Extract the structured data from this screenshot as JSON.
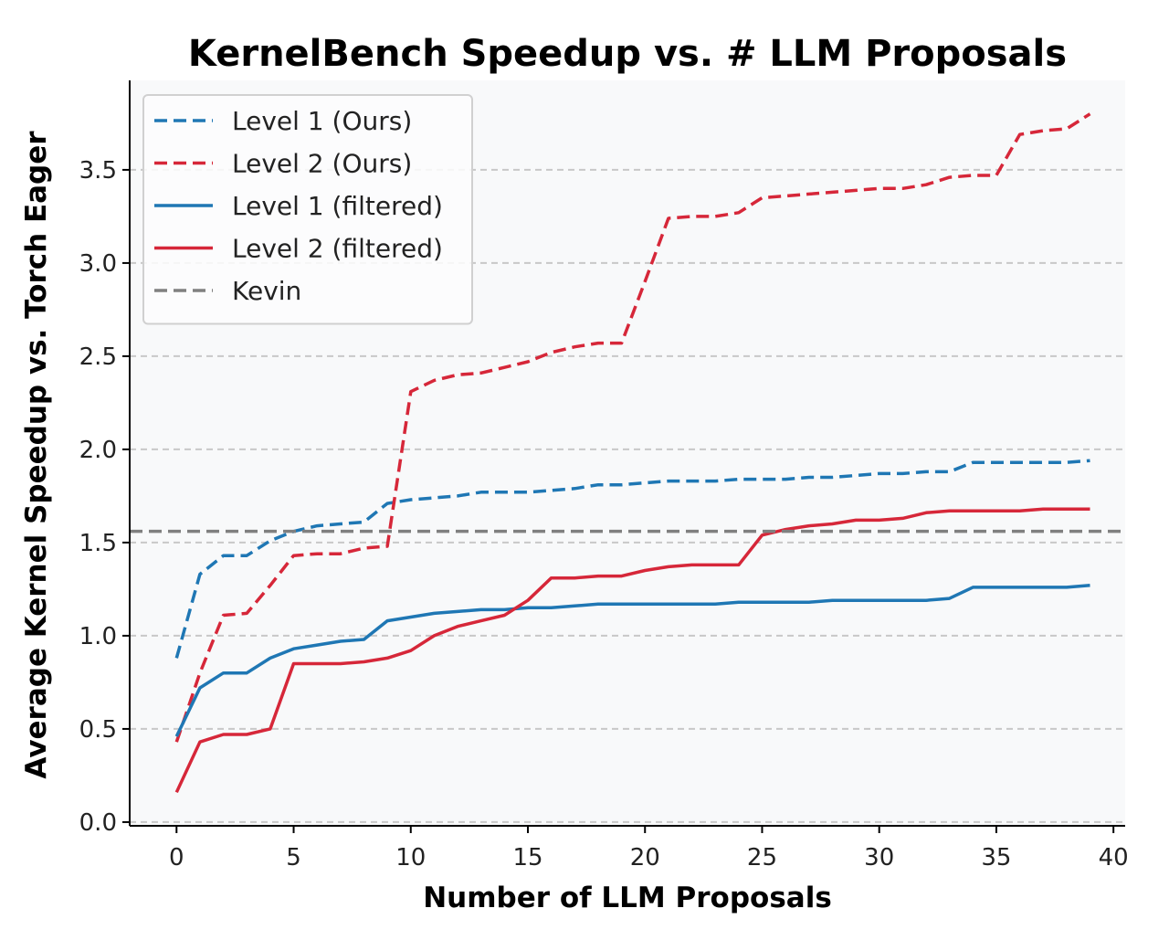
{
  "chart_data": {
    "type": "line",
    "title": "KernelBench Speedup vs. # LLM Proposals",
    "xlabel": "Number of LLM Proposals",
    "ylabel": "Average Kernel Speedup vs. Torch Eager",
    "xlim": [
      -2,
      40.5
    ],
    "ylim": [
      -0.02,
      3.98
    ],
    "xticks": [
      0,
      5,
      10,
      15,
      20,
      25,
      30,
      35,
      40
    ],
    "yticks": [
      0.0,
      0.5,
      1.0,
      1.5,
      2.0,
      2.5,
      3.0,
      3.5
    ],
    "ytick_labels": [
      "0.0",
      "0.5",
      "1.0",
      "1.5",
      "2.0",
      "2.5",
      "3.0",
      "3.5"
    ],
    "grid": "horizontal dashed",
    "legend_position": "upper-left",
    "x": [
      0,
      1,
      2,
      3,
      4,
      5,
      6,
      7,
      8,
      9,
      10,
      11,
      12,
      13,
      14,
      15,
      16,
      17,
      18,
      19,
      20,
      21,
      22,
      23,
      24,
      25,
      26,
      27,
      28,
      29,
      30,
      31,
      32,
      33,
      34,
      35,
      36,
      37,
      38,
      39
    ],
    "series": [
      {
        "name": "Level 1 (Ours)",
        "color": "#1f77b4",
        "style": "dashed",
        "values": [
          0.88,
          1.33,
          1.43,
          1.43,
          1.51,
          1.56,
          1.59,
          1.6,
          1.61,
          1.71,
          1.73,
          1.74,
          1.75,
          1.77,
          1.77,
          1.77,
          1.78,
          1.79,
          1.81,
          1.81,
          1.82,
          1.83,
          1.83,
          1.83,
          1.84,
          1.84,
          1.84,
          1.85,
          1.85,
          1.86,
          1.87,
          1.87,
          1.88,
          1.88,
          1.93,
          1.93,
          1.93,
          1.93,
          1.93,
          1.94
        ]
      },
      {
        "name": "Level 2 (Ours)",
        "color": "#d62739",
        "style": "dashed",
        "values": [
          0.43,
          0.8,
          1.11,
          1.12,
          1.27,
          1.43,
          1.44,
          1.44,
          1.47,
          1.48,
          2.31,
          2.37,
          2.4,
          2.41,
          2.44,
          2.47,
          2.52,
          2.55,
          2.57,
          2.57,
          2.9,
          3.24,
          3.25,
          3.25,
          3.27,
          3.35,
          3.36,
          3.37,
          3.38,
          3.39,
          3.4,
          3.4,
          3.42,
          3.46,
          3.47,
          3.47,
          3.69,
          3.71,
          3.72,
          3.8
        ]
      },
      {
        "name": "Level 1 (filtered)",
        "color": "#1f77b4",
        "style": "solid",
        "values": [
          0.46,
          0.72,
          0.8,
          0.8,
          0.88,
          0.93,
          0.95,
          0.97,
          0.98,
          1.08,
          1.1,
          1.12,
          1.13,
          1.14,
          1.14,
          1.15,
          1.15,
          1.16,
          1.17,
          1.17,
          1.17,
          1.17,
          1.17,
          1.17,
          1.18,
          1.18,
          1.18,
          1.18,
          1.19,
          1.19,
          1.19,
          1.19,
          1.19,
          1.2,
          1.26,
          1.26,
          1.26,
          1.26,
          1.26,
          1.27
        ]
      },
      {
        "name": "Level 2 (filtered)",
        "color": "#d62739",
        "style": "solid",
        "values": [
          0.16,
          0.43,
          0.47,
          0.47,
          0.5,
          0.85,
          0.85,
          0.85,
          0.86,
          0.88,
          0.92,
          1.0,
          1.05,
          1.08,
          1.11,
          1.19,
          1.31,
          1.31,
          1.32,
          1.32,
          1.35,
          1.37,
          1.38,
          1.38,
          1.38,
          1.54,
          1.57,
          1.59,
          1.6,
          1.62,
          1.62,
          1.63,
          1.66,
          1.67,
          1.67,
          1.67,
          1.67,
          1.68,
          1.68,
          1.68
        ]
      },
      {
        "name": "Kevin",
        "color": "#808080",
        "style": "dashed-hline",
        "y": 1.56
      }
    ]
  }
}
